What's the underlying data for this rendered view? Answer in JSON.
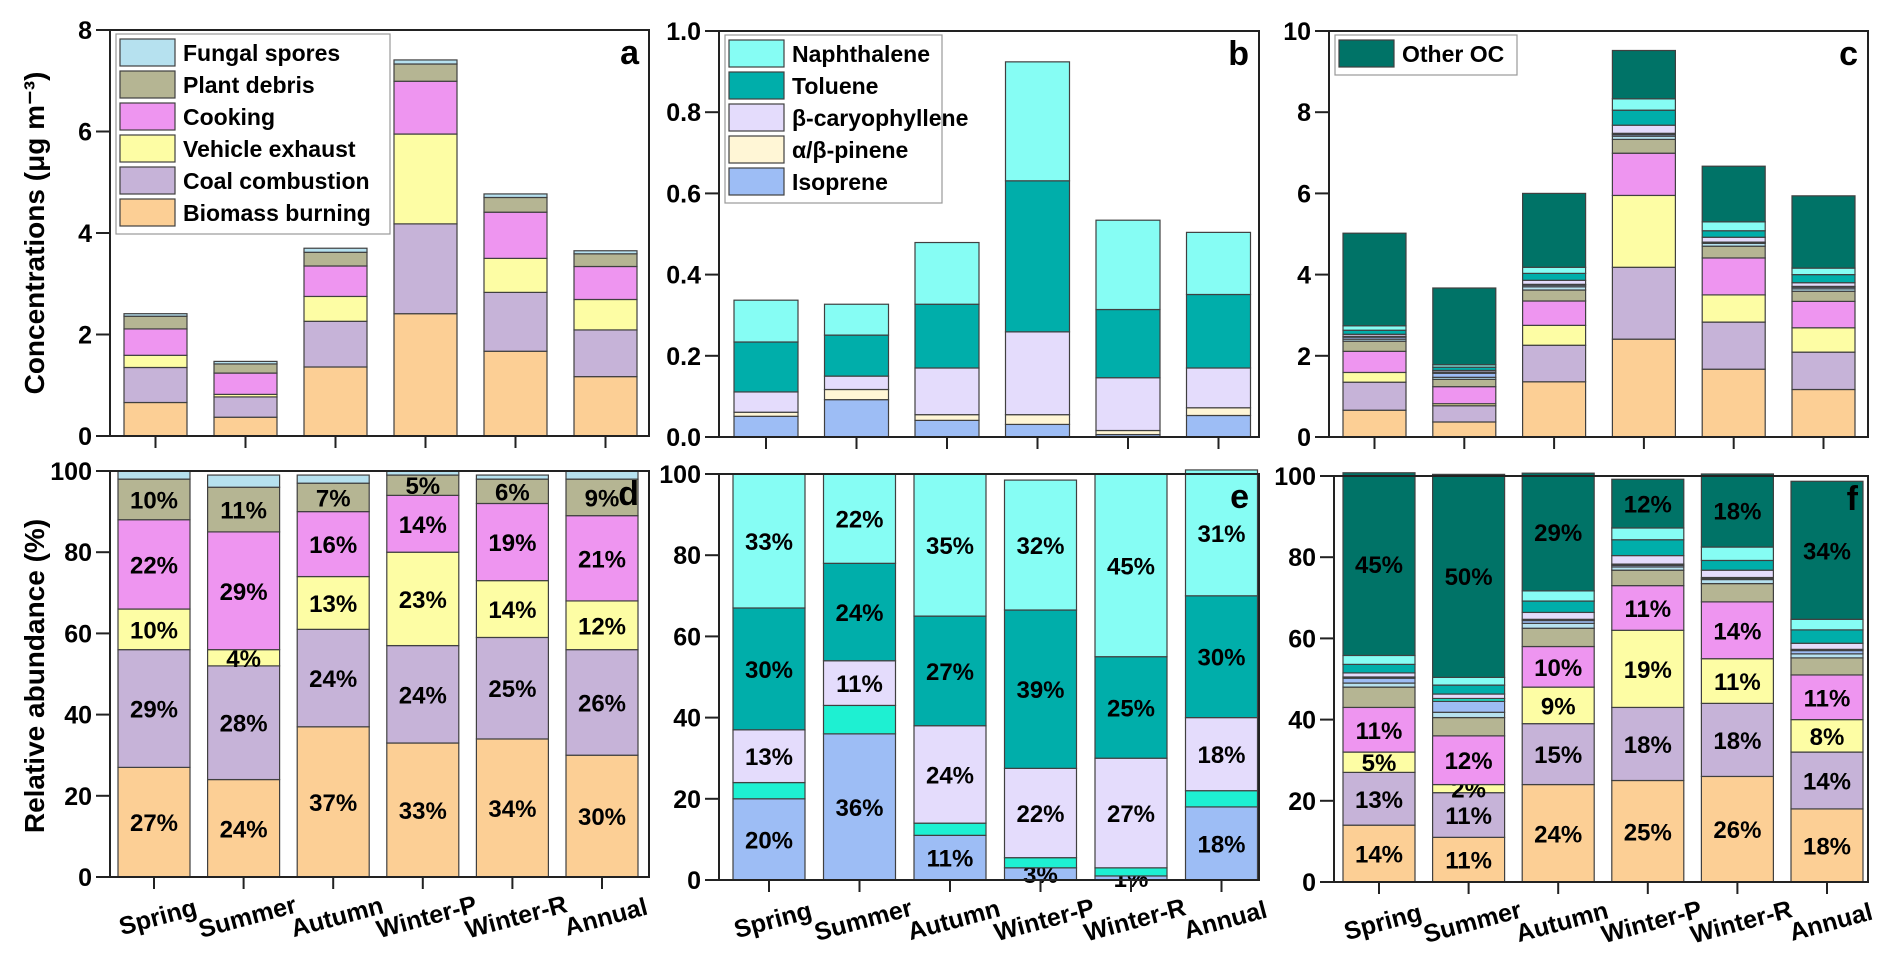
{
  "chart_data": [
    {
      "id": "a",
      "type": "bar",
      "stacked": true,
      "panel_letter": "a",
      "title": "",
      "xlabel": "",
      "ylabel": "Concentrations (μg m⁻³)",
      "ylim": [
        0,
        8
      ],
      "yticks": [
        0,
        2,
        4,
        6,
        8
      ],
      "categories": [
        "Spring",
        "Summer",
        "Autumn",
        "Winter-P",
        "Winter-R",
        "Annual"
      ],
      "show_category_labels": false,
      "legend": {
        "placement": "top-left",
        "order": [
          "Fungal spores",
          "Plant debris",
          "Cooking",
          "Vehicle exhaust",
          "Coal combustion",
          "Biomass burning"
        ]
      },
      "series": [
        {
          "name": "Biomass burning",
          "color": "#fccf95",
          "values": [
            0.66,
            0.37,
            1.36,
            2.41,
            1.67,
            1.17
          ]
        },
        {
          "name": "Coal combustion",
          "color": "#c6b3d8",
          "values": [
            0.69,
            0.4,
            0.9,
            1.77,
            1.16,
            0.92
          ]
        },
        {
          "name": "Vehicle exhaust",
          "color": "#fdfda4",
          "values": [
            0.24,
            0.05,
            0.49,
            1.77,
            0.67,
            0.6
          ]
        },
        {
          "name": "Cooking",
          "color": "#ee95f0",
          "values": [
            0.52,
            0.42,
            0.6,
            1.04,
            0.91,
            0.65
          ]
        },
        {
          "name": "Plant debris",
          "color": "#b5b593",
          "values": [
            0.25,
            0.18,
            0.27,
            0.34,
            0.29,
            0.25
          ]
        },
        {
          "name": "Fungal spores",
          "color": "#b6e1ef",
          "values": [
            0.05,
            0.05,
            0.08,
            0.08,
            0.07,
            0.06
          ]
        }
      ]
    },
    {
      "id": "b",
      "type": "bar",
      "stacked": true,
      "panel_letter": "b",
      "title": "",
      "xlabel": "",
      "ylabel": "",
      "ylim": [
        0,
        1.0
      ],
      "yticks": [
        0.0,
        0.2,
        0.4,
        0.6,
        0.8,
        1.0
      ],
      "ytick_labels": [
        "0.0",
        "0.2",
        "0.4",
        "0.6",
        "0.8",
        "1.0"
      ],
      "categories": [
        "Spring",
        "Summer",
        "Autumn",
        "Winter-P",
        "Winter-R",
        "Annual"
      ],
      "show_category_labels": false,
      "legend": {
        "placement": "top-left",
        "order": [
          "Naphthalene",
          "Toluene",
          "β-caryophyllene",
          "α/β-pinene",
          "Isoprene"
        ]
      },
      "series": [
        {
          "name": "Isoprene",
          "color": "#9dbdf5",
          "values": [
            0.051,
            0.092,
            0.041,
            0.031,
            0.006,
            0.053
          ]
        },
        {
          "name": "α/β-pinene",
          "color": "#fff6d6",
          "values": [
            0.01,
            0.025,
            0.014,
            0.024,
            0.01,
            0.019
          ]
        },
        {
          "name": "β-caryophyllene",
          "color": "#e4dcfc",
          "values": [
            0.05,
            0.033,
            0.115,
            0.204,
            0.13,
            0.098
          ]
        },
        {
          "name": "Toluene",
          "color": "#00aeaa",
          "values": [
            0.123,
            0.101,
            0.157,
            0.372,
            0.168,
            0.181
          ]
        },
        {
          "name": "Naphthalene",
          "color": "#86fdf4",
          "values": [
            0.103,
            0.076,
            0.152,
            0.293,
            0.22,
            0.153
          ]
        }
      ]
    },
    {
      "id": "c",
      "type": "bar",
      "stacked": true,
      "panel_letter": "c",
      "title": "",
      "xlabel": "",
      "ylabel": "",
      "ylim": [
        0,
        10
      ],
      "yticks": [
        0,
        2,
        4,
        6,
        8,
        10
      ],
      "categories": [
        "Spring",
        "Summer",
        "Autumn",
        "Winter-P",
        "Winter-R",
        "Annual"
      ],
      "show_category_labels": false,
      "legend": {
        "placement": "top-left",
        "order": [
          "Other OC"
        ]
      },
      "series": [
        {
          "name": "Biomass burning",
          "color": "#fccf95",
          "values": [
            0.66,
            0.37,
            1.36,
            2.41,
            1.67,
            1.17
          ]
        },
        {
          "name": "Coal combustion",
          "color": "#c6b3d8",
          "values": [
            0.69,
            0.4,
            0.9,
            1.77,
            1.16,
            0.92
          ]
        },
        {
          "name": "Vehicle exhaust",
          "color": "#fdfda4",
          "values": [
            0.24,
            0.05,
            0.49,
            1.77,
            0.67,
            0.6
          ]
        },
        {
          "name": "Cooking",
          "color": "#ee95f0",
          "values": [
            0.52,
            0.42,
            0.6,
            1.04,
            0.91,
            0.65
          ]
        },
        {
          "name": "Plant debris",
          "color": "#b5b593",
          "values": [
            0.25,
            0.18,
            0.27,
            0.34,
            0.29,
            0.25
          ]
        },
        {
          "name": "Fungal spores",
          "color": "#b6e1ef",
          "values": [
            0.05,
            0.05,
            0.08,
            0.08,
            0.07,
            0.06
          ]
        },
        {
          "name": "Isoprene",
          "color": "#9dbdf5",
          "values": [
            0.05,
            0.1,
            0.04,
            0.04,
            0.01,
            0.04
          ]
        },
        {
          "name": "α/β-pinene",
          "color": "#1ef0d2",
          "values": [
            0.02,
            0.03,
            0.02,
            0.03,
            0.02,
            0.02
          ]
        },
        {
          "name": "β-caryophyllene",
          "color": "#e4dcfc",
          "values": [
            0.05,
            0.04,
            0.1,
            0.2,
            0.12,
            0.09
          ]
        },
        {
          "name": "Toluene",
          "color": "#00aeaa",
          "values": [
            0.1,
            0.08,
            0.17,
            0.37,
            0.16,
            0.2
          ]
        },
        {
          "name": "Naphthalene",
          "color": "#86fdf4",
          "values": [
            0.11,
            0.06,
            0.15,
            0.28,
            0.22,
            0.16
          ]
        },
        {
          "name": "Other OC",
          "color": "#007367",
          "values": [
            2.28,
            1.89,
            1.82,
            1.19,
            1.37,
            1.78
          ]
        }
      ]
    },
    {
      "id": "d",
      "type": "bar",
      "stacked": true,
      "panel_letter": "d",
      "title": "",
      "xlabel": "",
      "ylabel": "Relative abundance (%)",
      "ylim": [
        0,
        100
      ],
      "yticks": [
        0,
        20,
        40,
        60,
        80,
        100
      ],
      "categories": [
        "Spring",
        "Summer",
        "Autumn",
        "Winter-P",
        "Winter-R",
        "Annual"
      ],
      "show_category_labels": true,
      "series": [
        {
          "name": "Biomass burning",
          "color": "#fccf95",
          "values": [
            27,
            24,
            37,
            33,
            34,
            30
          ],
          "labels": [
            "27%",
            "24%",
            "37%",
            "33%",
            "34%",
            "30%"
          ]
        },
        {
          "name": "Coal combustion",
          "color": "#c6b3d8",
          "values": [
            29,
            28,
            24,
            24,
            25,
            26
          ],
          "labels": [
            "29%",
            "28%",
            "24%",
            "24%",
            "25%",
            "26%"
          ]
        },
        {
          "name": "Vehicle exhaust",
          "color": "#fdfda4",
          "values": [
            10,
            4,
            13,
            23,
            14,
            12
          ],
          "labels": [
            "10%",
            "4%",
            "13%",
            "23%",
            "14%",
            "12%"
          ]
        },
        {
          "name": "Cooking",
          "color": "#ee95f0",
          "values": [
            22,
            29,
            16,
            14,
            19,
            21
          ],
          "labels": [
            "22%",
            "29%",
            "16%",
            "14%",
            "19%",
            "21%"
          ]
        },
        {
          "name": "Plant debris",
          "color": "#b5b593",
          "values": [
            10,
            11,
            7,
            5,
            6,
            9
          ],
          "labels": [
            "10%",
            "11%",
            "7%",
            "5%",
            "6%",
            "9%"
          ]
        },
        {
          "name": "Fungal spores",
          "color": "#b6e1ef",
          "values": [
            2,
            3,
            2,
            1,
            1,
            2
          ],
          "labels": [
            "",
            "",
            "",
            "",
            "",
            ""
          ]
        }
      ]
    },
    {
      "id": "e",
      "type": "bar",
      "stacked": true,
      "panel_letter": "e",
      "title": "",
      "xlabel": "",
      "ylabel": "",
      "ylim": [
        0,
        100
      ],
      "yticks": [
        0,
        20,
        40,
        60,
        80,
        100
      ],
      "categories": [
        "Spring",
        "Summer",
        "Autumn",
        "Winter-P",
        "Winter-R",
        "Annual"
      ],
      "show_category_labels": true,
      "series": [
        {
          "name": "Isoprene",
          "color": "#9dbdf5",
          "values": [
            20,
            36,
            11,
            3,
            1,
            18
          ],
          "labels": [
            "20%",
            "36%",
            "11%",
            "3%",
            "1%",
            "18%"
          ]
        },
        {
          "name": "α/β-pinene",
          "color": "#1ef0d2",
          "values": [
            4,
            7,
            3,
            2.5,
            2,
            4
          ],
          "labels": [
            "",
            "",
            "",
            "",
            "",
            ""
          ]
        },
        {
          "name": "β-caryophyllene",
          "color": "#e4dcfc",
          "values": [
            13,
            11,
            24,
            22,
            27,
            18
          ],
          "labels": [
            "13%",
            "11%",
            "24%",
            "22%",
            "27%",
            "18%"
          ]
        },
        {
          "name": "Toluene",
          "color": "#00aeaa",
          "values": [
            30,
            24,
            27,
            39,
            25,
            30
          ],
          "labels": [
            "30%",
            "24%",
            "27%",
            "39%",
            "25%",
            "30%"
          ]
        },
        {
          "name": "Naphthalene",
          "color": "#86fdf4",
          "values": [
            33,
            22,
            35,
            32,
            45,
            31
          ],
          "labels": [
            "33%",
            "22%",
            "35%",
            "32%",
            "45%",
            "31%"
          ]
        }
      ]
    },
    {
      "id": "f",
      "type": "bar",
      "stacked": true,
      "panel_letter": "f",
      "title": "",
      "xlabel": "",
      "ylabel": "",
      "ylim": [
        0,
        100
      ],
      "yticks": [
        0,
        20,
        40,
        60,
        80,
        100
      ],
      "categories": [
        "Spring",
        "Summer",
        "Autumn",
        "Winter-P",
        "Winter-R",
        "Annual"
      ],
      "show_category_labels": true,
      "series": [
        {
          "name": "Biomass burning",
          "color": "#fccf95",
          "values": [
            14,
            11,
            24,
            25,
            26,
            18
          ],
          "labels": [
            "14%",
            "11%",
            "24%",
            "25%",
            "26%",
            "18%"
          ]
        },
        {
          "name": "Coal combustion",
          "color": "#c6b3d8",
          "values": [
            13,
            11,
            15,
            18,
            18,
            14
          ],
          "labels": [
            "13%",
            "11%",
            "15%",
            "18%",
            "18%",
            "14%"
          ]
        },
        {
          "name": "Vehicle exhaust",
          "color": "#fdfda4",
          "values": [
            5,
            2,
            9,
            19,
            11,
            8
          ],
          "labels": [
            "5%",
            "2%",
            "9%",
            "19%",
            "11%",
            "8%"
          ]
        },
        {
          "name": "Cooking",
          "color": "#ee95f0",
          "values": [
            11,
            12,
            10,
            11,
            14,
            11
          ],
          "labels": [
            "11%",
            "12%",
            "10%",
            "11%",
            "14%",
            "11%"
          ]
        },
        {
          "name": "Plant debris",
          "color": "#b5b593",
          "values": [
            5,
            4.5,
            4.5,
            3.8,
            4.5,
            4.2
          ],
          "labels": [
            "",
            "",
            "",
            "",
            "",
            ""
          ]
        },
        {
          "name": "Fungal spores",
          "color": "#b6e1ef",
          "values": [
            1,
            1.3,
            1.2,
            0.8,
            1,
            1
          ],
          "labels": [
            "",
            "",
            "",
            "",
            "",
            ""
          ]
        },
        {
          "name": "Isoprene",
          "color": "#9dbdf5",
          "values": [
            1.2,
            2.7,
            0.7,
            0.4,
            0.2,
            0.8
          ],
          "labels": [
            "",
            "",
            "",
            "",
            "",
            ""
          ]
        },
        {
          "name": "α/β-pinene",
          "color": "#1ef0d2",
          "values": [
            0.3,
            0.7,
            0.3,
            0.3,
            0.3,
            0.3
          ],
          "labels": [
            "",
            "",
            "",
            "",
            "",
            ""
          ]
        },
        {
          "name": "β-caryophyllene",
          "color": "#e4dcfc",
          "values": [
            1,
            1.1,
            1.7,
            2.1,
            1.8,
            1.5
          ],
          "labels": [
            "",
            "",
            "",
            "",
            "",
            ""
          ]
        },
        {
          "name": "Toluene",
          "color": "#00aeaa",
          "values": [
            2.1,
            2.2,
            2.8,
            3.9,
            2.4,
            3.3
          ],
          "labels": [
            "",
            "",
            "",
            "",
            "",
            ""
          ]
        },
        {
          "name": "Naphthalene",
          "color": "#86fdf4",
          "values": [
            2.2,
            1.9,
            2.5,
            2.9,
            3.3,
            2.6
          ],
          "labels": [
            "",
            "",
            "",
            "",
            "",
            ""
          ]
        },
        {
          "name": "Other OC",
          "color": "#007367",
          "values": [
            45,
            50,
            29,
            12,
            18,
            34
          ],
          "labels": [
            "45%",
            "50%",
            "29%",
            "12%",
            "18%",
            "34%"
          ]
        }
      ]
    }
  ]
}
